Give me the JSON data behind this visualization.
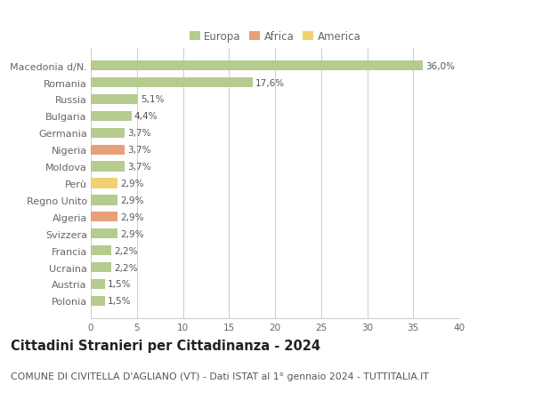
{
  "categories": [
    "Polonia",
    "Austria",
    "Ucraina",
    "Francia",
    "Svizzera",
    "Algeria",
    "Regno Unito",
    "Perù",
    "Moldova",
    "Nigeria",
    "Germania",
    "Bulgaria",
    "Russia",
    "Romania",
    "Macedonia d/N."
  ],
  "values": [
    1.5,
    1.5,
    2.2,
    2.2,
    2.9,
    2.9,
    2.9,
    2.9,
    3.7,
    3.7,
    3.7,
    4.4,
    5.1,
    17.6,
    36.0
  ],
  "continents": [
    "Europa",
    "Europa",
    "Europa",
    "Europa",
    "Europa",
    "Africa",
    "Europa",
    "America",
    "Europa",
    "Africa",
    "Europa",
    "Europa",
    "Europa",
    "Europa",
    "Europa"
  ],
  "bar_colors": {
    "Europa": "#b5cc8e",
    "Africa": "#e8a07a",
    "America": "#f0d070"
  },
  "labels": [
    "1,5%",
    "1,5%",
    "2,2%",
    "2,2%",
    "2,9%",
    "2,9%",
    "2,9%",
    "2,9%",
    "3,7%",
    "3,7%",
    "3,7%",
    "4,4%",
    "5,1%",
    "17,6%",
    "36,0%"
  ],
  "title": "Cittadini Stranieri per Cittadinanza - 2024",
  "subtitle": "COMUNE DI CIVITELLA D'AGLIANO (VT) - Dati ISTAT al 1° gennaio 2024 - TUTTITALIA.IT",
  "xlim": [
    0,
    40
  ],
  "xticks": [
    0,
    5,
    10,
    15,
    20,
    25,
    30,
    35,
    40
  ],
  "legend_labels": [
    "Europa",
    "Africa",
    "America"
  ],
  "legend_colors": [
    "#b5cc8e",
    "#e8a07a",
    "#f0d070"
  ],
  "bg_color": "#ffffff",
  "grid_color": "#cccccc",
  "bar_height": 0.6,
  "label_fontsize": 7.5,
  "title_fontsize": 10.5,
  "subtitle_fontsize": 7.8,
  "tick_fontsize": 7.5,
  "ytick_fontsize": 8.0,
  "axis_label_color": "#666666",
  "legend_fontsize": 8.5
}
